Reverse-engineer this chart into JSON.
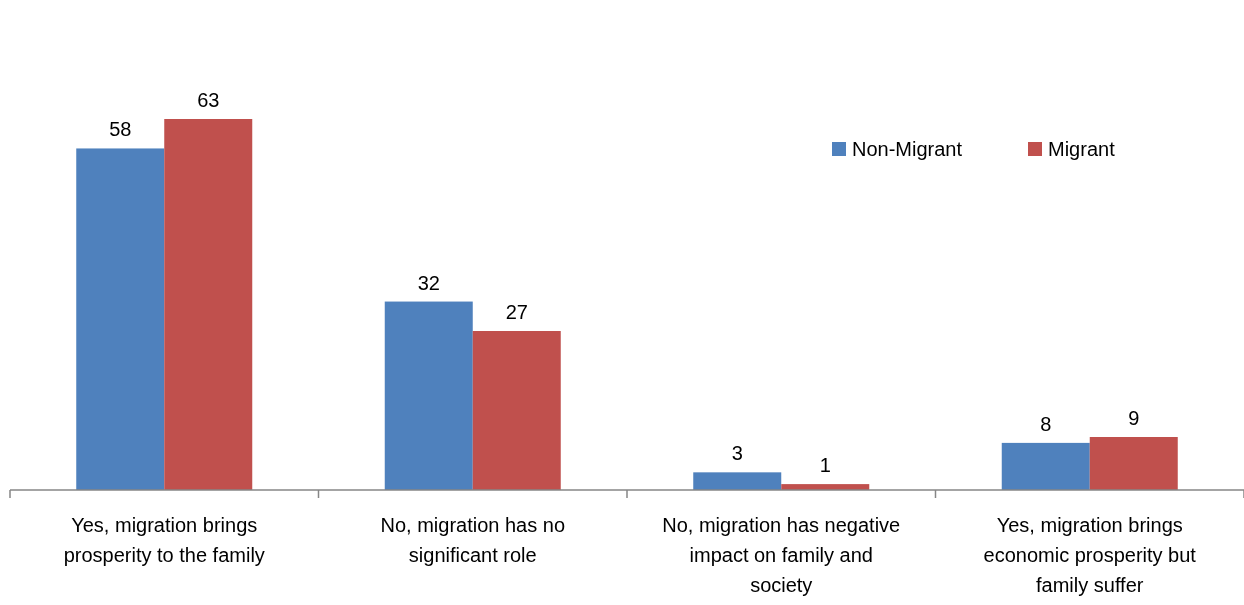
{
  "chart_data": {
    "type": "bar",
    "categories": [
      "Yes, migration brings prosperity to the family",
      "No, migration has no significant role",
      "No, migration has negative impact on family and society",
      "Yes, migration brings economic prosperity but family suffer"
    ],
    "series": [
      {
        "name": "Non-Migrant",
        "color": "#4f81bd",
        "values": [
          58,
          32,
          3,
          8
        ]
      },
      {
        "name": "Migrant",
        "color": "#c0504d",
        "values": [
          63,
          27,
          1,
          9
        ]
      }
    ],
    "data_labels": true,
    "legend": "top right",
    "grid": false
  }
}
